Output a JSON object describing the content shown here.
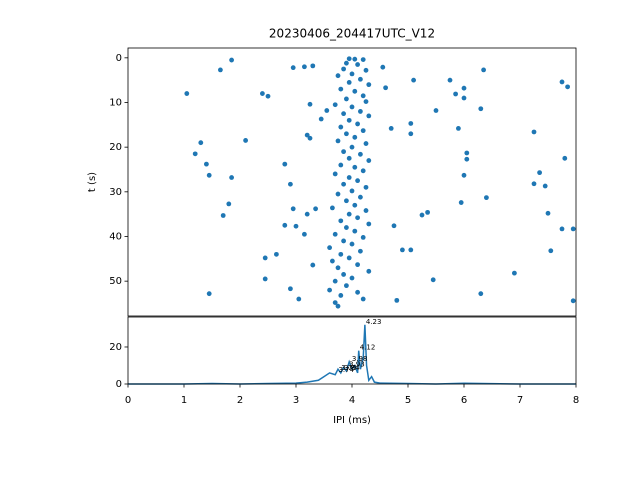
{
  "chart_data": [
    {
      "type": "scatter",
      "title": "20230406_204417UTC_V12",
      "y_label": "t (s)",
      "color": "#1f77b4",
      "x": [
        1.05,
        1.3,
        1.2,
        1.4,
        1.45,
        1.65,
        1.85,
        1.85,
        1.8,
        1.7,
        1.45,
        2.1,
        2.4,
        2.5,
        2.45,
        2.45,
        2.65,
        2.8,
        2.8,
        2.9,
        2.95,
        2.9,
        2.95,
        3.15,
        3.2,
        3.25,
        3.2,
        3.05,
        3.3,
        3.25,
        3.3,
        3.0,
        3.15,
        3.35,
        3.45,
        3.55,
        4.55,
        4.6,
        4.7,
        4.75,
        4.8,
        4.9,
        5.05,
        5.05,
        5.05,
        5.1,
        5.25,
        5.35,
        5.45,
        5.5,
        5.75,
        5.85,
        5.9,
        5.95,
        6.0,
        6.0,
        6.0,
        6.05,
        6.05,
        6.3,
        6.35,
        6.4,
        6.3,
        6.9,
        7.25,
        7.25,
        7.35,
        7.45,
        7.55,
        7.5,
        7.75,
        7.8,
        7.85,
        7.75,
        7.95,
        7.95,
        3.95,
        4.05,
        4.2,
        3.9,
        4.1,
        3.85,
        4.25,
        4.0,
        3.75,
        4.15,
        3.95,
        4.3,
        3.8,
        4.05,
        4.2,
        3.9,
        4.25,
        3.7,
        4.0,
        4.15,
        3.85,
        4.3,
        3.95,
        4.1,
        3.8,
        4.2,
        3.9,
        4.05,
        3.75,
        4.25,
        4.0,
        3.85,
        4.15,
        3.95,
        4.3,
        3.8,
        4.05,
        4.2,
        3.7,
        3.95,
        4.1,
        3.85,
        4.25,
        4.0,
        3.75,
        4.15,
        3.9,
        4.05,
        3.65,
        4.25,
        3.95,
        4.1,
        3.8,
        4.3,
        3.9,
        4.05,
        3.7,
        4.2,
        3.85,
        4.0,
        3.6,
        4.15,
        3.8,
        3.95,
        3.65,
        4.1,
        3.75,
        4.3,
        3.85,
        4.0,
        3.7,
        3.9,
        3.6,
        4.1,
        3.8,
        4.2,
        3.7,
        3.75
      ],
      "values": [
        8,
        19,
        21.5,
        23.8,
        26.3,
        2.7,
        0.5,
        26.8,
        32.7,
        35.3,
        52.8,
        18.5,
        8,
        8.6,
        44.8,
        49.5,
        44,
        23.8,
        37.5,
        28.3,
        33.8,
        51.7,
        2.2,
        2,
        17.3,
        18,
        35,
        54,
        1.8,
        10.4,
        46.4,
        37.7,
        39.5,
        33.8,
        13.7,
        11.8,
        2.1,
        6.7,
        15.8,
        37.6,
        54.3,
        43,
        17,
        14.7,
        43,
        5,
        35.2,
        34.6,
        49.7,
        11.8,
        5,
        8.1,
        15.8,
        32.4,
        26.3,
        9,
        6.8,
        21.3,
        22.7,
        11.4,
        2.7,
        31.3,
        52.8,
        48.2,
        16.6,
        28.2,
        25.7,
        28.7,
        43.2,
        34.8,
        5.4,
        22.5,
        6.5,
        38.3,
        38.3,
        54.4,
        0.2,
        0.3,
        0.4,
        1.2,
        1.5,
        2.5,
        2.8,
        3.6,
        4,
        4.8,
        5.5,
        6,
        7,
        7.5,
        8.5,
        9.2,
        9.8,
        10.5,
        11,
        12,
        12.5,
        13,
        14,
        14.8,
        15.5,
        16.3,
        17,
        17.8,
        18.6,
        19.2,
        20,
        21,
        21.6,
        22.5,
        23,
        24,
        24.5,
        25.3,
        26,
        26.8,
        27.5,
        28.3,
        29,
        29.8,
        30.5,
        31.2,
        32,
        33,
        33.6,
        34.2,
        35,
        35.8,
        36.5,
        37.2,
        38,
        38.8,
        39.5,
        40.2,
        41,
        41.7,
        42.5,
        43.3,
        44,
        44.8,
        45.5,
        46.3,
        47,
        47.8,
        48.5,
        49.3,
        50,
        51,
        52,
        52.5,
        53.2,
        54,
        54.8,
        55.6
      ],
      "xlim": [
        0,
        8
      ],
      "ylim": [
        57.8,
        -2.2
      ],
      "yticks": [
        0,
        10,
        20,
        30,
        40,
        50
      ]
    },
    {
      "type": "line",
      "x_label": "IPI (ms)",
      "color": "#1f77b4",
      "x": [
        0,
        1,
        1.5,
        2,
        2.5,
        3,
        3.2,
        3.4,
        3.5,
        3.6,
        3.7,
        3.75,
        3.8,
        3.85,
        3.9,
        3.95,
        4.0,
        4.05,
        4.1,
        4.12,
        4.15,
        4.2,
        4.23,
        4.26,
        4.3,
        4.35,
        4.4,
        4.5,
        5,
        5.5,
        6,
        7,
        8
      ],
      "values": [
        0,
        0,
        0.3,
        0,
        0.3,
        0.5,
        1,
        2,
        4,
        6,
        5,
        8,
        6,
        9,
        7,
        12,
        8,
        10,
        6,
        18,
        8,
        14,
        32,
        10,
        2,
        4,
        1,
        0.5,
        0.3,
        0,
        0.4,
        0,
        0
      ],
      "annotations": [
        {
          "text": "4.23",
          "x": 4.23,
          "y": 32
        },
        {
          "text": "4.12",
          "x": 4.12,
          "y": 18
        },
        {
          "text": "3.98",
          "x": 3.98,
          "y": 12
        },
        {
          "text": "3.93",
          "x": 3.93,
          "y": 9
        },
        {
          "text": "3.84",
          "x": 3.84,
          "y": 7
        },
        {
          "text": "3.79",
          "x": 3.79,
          "y": 7
        },
        {
          "text": "3.74",
          "x": 3.74,
          "y": 6
        }
      ],
      "xlim": [
        0,
        8
      ],
      "ylim": [
        0,
        36.2
      ],
      "xticks": [
        0,
        1,
        2,
        3,
        4,
        5,
        6,
        7,
        8
      ],
      "yticks": [
        0,
        20
      ]
    }
  ]
}
